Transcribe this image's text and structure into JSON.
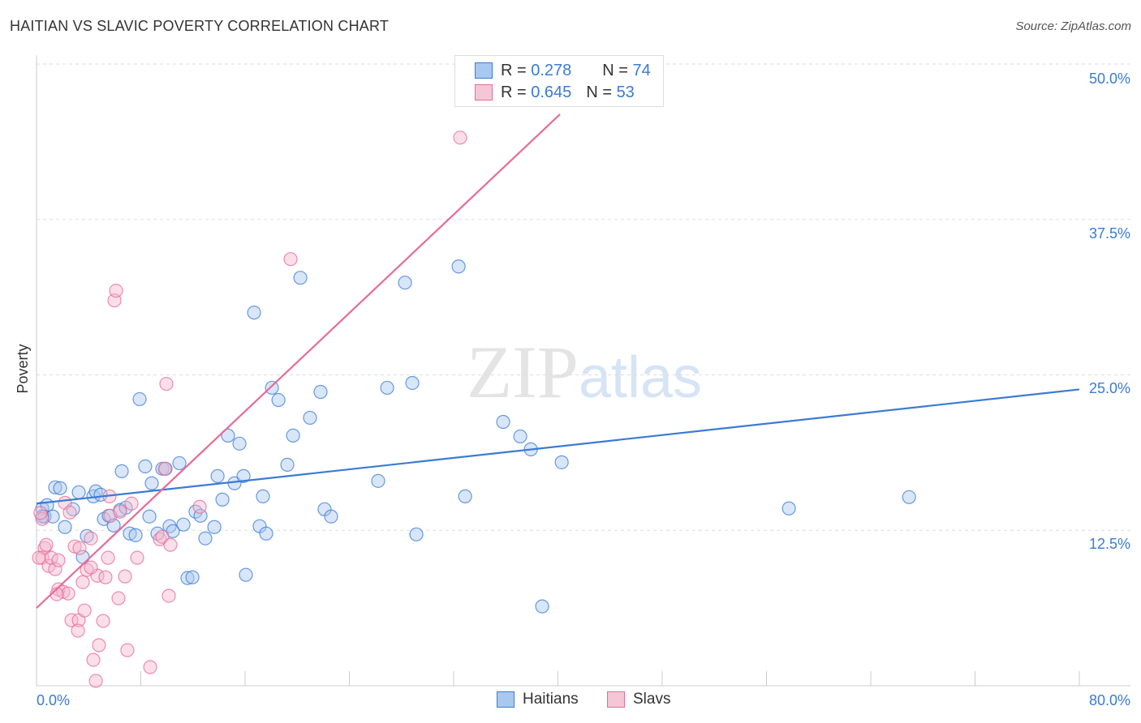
{
  "title": "HAITIAN VS SLAVIC POVERTY CORRELATION CHART",
  "source": "Source: ZipAtlas.com",
  "watermark": "ZIPatlas",
  "legend": [
    {
      "r_label": "R =",
      "r": "0.278",
      "n_label": "N =",
      "n": "74"
    },
    {
      "r_label": "R =",
      "r": "0.645",
      "n_label": "N =",
      "n": "53"
    }
  ],
  "colors": {
    "blue": "#3a7bd5",
    "blue_fill": "#a9c8f0",
    "pink": "#e86a98",
    "pink_fill": "#f5b8cc",
    "text_blue": "#3a7bd5"
  },
  "chart_data": {
    "type": "scatter",
    "title": "HAITIAN VS SLAVIC POVERTY CORRELATION CHART",
    "xlabel": "",
    "ylabel": "Poverty",
    "xlim": [
      0,
      80
    ],
    "ylim": [
      0,
      50
    ],
    "x_tick_labels": [
      "0.0%",
      "80.0%"
    ],
    "y_ticks": [
      12.5,
      25,
      37.5,
      50
    ],
    "y_tick_labels": [
      "12.5%",
      "25.0%",
      "37.5%",
      "50.0%"
    ],
    "grid": true,
    "legend_position": "bottom",
    "series": [
      {
        "name": "Haitians",
        "trend": [
          [
            0,
            14.65
          ],
          [
            80,
            23.83
          ]
        ],
        "points": [
          [
            0.44,
            14.26
          ],
          [
            0.81,
            14.52
          ],
          [
            0.62,
            13.61
          ],
          [
            1.25,
            13.61
          ],
          [
            1.43,
            15.95
          ],
          [
            1.81,
            15.89
          ],
          [
            2.18,
            12.76
          ],
          [
            2.8,
            14.19
          ],
          [
            3.24,
            15.56
          ],
          [
            3.55,
            10.35
          ],
          [
            3.86,
            12.04
          ],
          [
            4.36,
            15.23
          ],
          [
            4.55,
            15.63
          ],
          [
            4.92,
            15.36
          ],
          [
            5.17,
            13.41
          ],
          [
            5.54,
            13.67
          ],
          [
            5.92,
            12.89
          ],
          [
            6.41,
            14.13
          ],
          [
            6.54,
            17.25
          ],
          [
            6.85,
            14.32
          ],
          [
            7.16,
            12.24
          ],
          [
            7.6,
            12.11
          ],
          [
            7.91,
            23.05
          ],
          [
            8.34,
            17.64
          ],
          [
            8.66,
            13.61
          ],
          [
            8.84,
            16.28
          ],
          [
            9.28,
            12.24
          ],
          [
            9.65,
            17.45
          ],
          [
            9.9,
            17.45
          ],
          [
            10.21,
            12.83
          ],
          [
            10.46,
            12.43
          ],
          [
            10.96,
            17.9
          ],
          [
            11.27,
            12.96
          ],
          [
            11.58,
            8.66
          ],
          [
            11.96,
            8.72
          ],
          [
            12.2,
            14.0
          ],
          [
            12.58,
            13.67
          ],
          [
            12.95,
            11.85
          ],
          [
            13.64,
            12.76
          ],
          [
            13.89,
            16.86
          ],
          [
            14.26,
            14.97
          ],
          [
            14.69,
            20.12
          ],
          [
            15.19,
            16.28
          ],
          [
            15.57,
            19.47
          ],
          [
            15.88,
            16.86
          ],
          [
            16.06,
            8.92
          ],
          [
            16.69,
            30.01
          ],
          [
            17.12,
            12.83
          ],
          [
            17.37,
            15.23
          ],
          [
            17.62,
            12.24
          ],
          [
            18.06,
            23.96
          ],
          [
            18.56,
            22.98
          ],
          [
            19.24,
            17.77
          ],
          [
            19.68,
            20.12
          ],
          [
            20.24,
            32.81
          ],
          [
            20.98,
            21.55
          ],
          [
            21.79,
            23.63
          ],
          [
            22.1,
            14.19
          ],
          [
            22.6,
            13.61
          ],
          [
            26.21,
            16.47
          ],
          [
            26.9,
            23.96
          ],
          [
            28.27,
            32.42
          ],
          [
            28.83,
            24.35
          ],
          [
            29.14,
            12.17
          ],
          [
            32.38,
            33.72
          ],
          [
            32.88,
            15.23
          ],
          [
            35.8,
            21.22
          ],
          [
            37.11,
            20.05
          ],
          [
            37.92,
            19.01
          ],
          [
            38.79,
            6.38
          ],
          [
            40.29,
            17.97
          ],
          [
            57.72,
            14.26
          ],
          [
            66.94,
            15.17
          ],
          [
            0.44,
            13.61
          ]
        ]
      },
      {
        "name": "Slavs",
        "trend": [
          [
            0,
            6.25
          ],
          [
            40.16,
            45.96
          ]
        ],
        "points": [
          [
            0.44,
            13.41
          ],
          [
            0.44,
            10.29
          ],
          [
            0.62,
            11.07
          ],
          [
            0.75,
            11.33
          ],
          [
            0.93,
            9.64
          ],
          [
            1.12,
            10.29
          ],
          [
            1.43,
            9.38
          ],
          [
            1.68,
            10.09
          ],
          [
            1.68,
            7.75
          ],
          [
            2.05,
            7.55
          ],
          [
            2.18,
            14.71
          ],
          [
            2.43,
            7.42
          ],
          [
            2.55,
            13.93
          ],
          [
            2.68,
            5.27
          ],
          [
            2.93,
            11.2
          ],
          [
            3.24,
            5.27
          ],
          [
            3.18,
            4.43
          ],
          [
            3.3,
            11.07
          ],
          [
            3.55,
            8.33
          ],
          [
            3.68,
            6.05
          ],
          [
            3.86,
            9.31
          ],
          [
            4.17,
            11.85
          ],
          [
            4.36,
            2.08
          ],
          [
            4.67,
            8.85
          ],
          [
            4.79,
            3.26
          ],
          [
            5.11,
            5.21
          ],
          [
            5.29,
            8.72
          ],
          [
            5.48,
            10.29
          ],
          [
            5.6,
            15.23
          ],
          [
            5.67,
            13.67
          ],
          [
            4.55,
            0.39
          ],
          [
            5.98,
            30.99
          ],
          [
            6.1,
            31.77
          ],
          [
            6.29,
            7.03
          ],
          [
            6.41,
            14.0
          ],
          [
            6.79,
            8.79
          ],
          [
            6.97,
            2.86
          ],
          [
            7.29,
            14.65
          ],
          [
            7.72,
            10.29
          ],
          [
            8.72,
            1.5
          ],
          [
            9.46,
            11.78
          ],
          [
            9.65,
            11.98
          ],
          [
            9.84,
            17.45
          ],
          [
            9.96,
            24.28
          ],
          [
            10.15,
            7.23
          ],
          [
            10.27,
            11.33
          ],
          [
            12.52,
            14.39
          ],
          [
            19.49,
            34.31
          ],
          [
            32.5,
            44.08
          ],
          [
            0.19,
            10.29
          ],
          [
            1.56,
            7.36
          ],
          [
            4.17,
            9.51
          ],
          [
            0.3,
            13.9
          ]
        ]
      }
    ]
  }
}
